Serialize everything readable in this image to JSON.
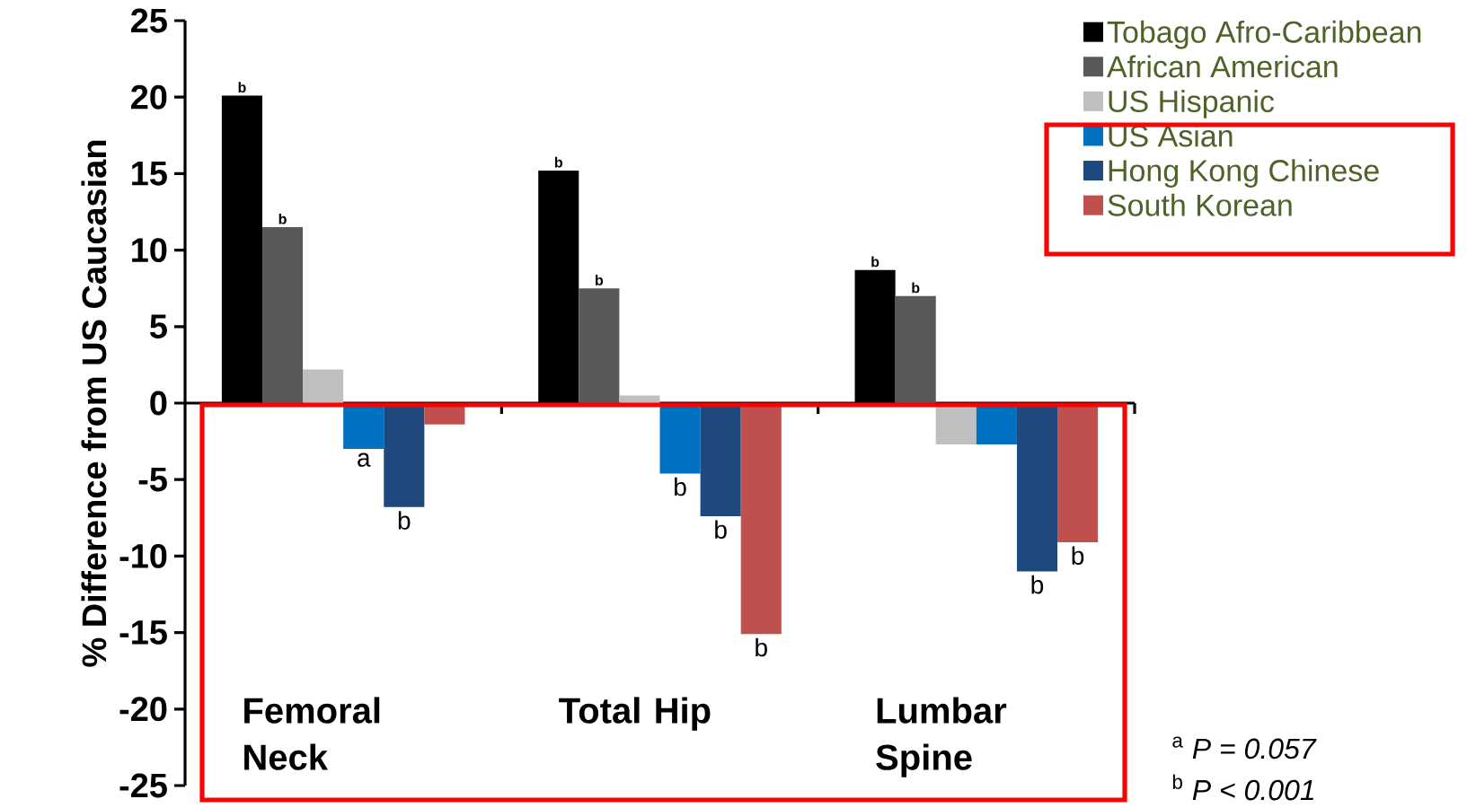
{
  "chart_data": {
    "type": "bar",
    "ylabel": "% Difference from US Caucasian",
    "categories": [
      "Femoral Neck",
      "Total Hip",
      "Lumbar Spine"
    ],
    "series": [
      {
        "name": "Tobago Afro-Caribbean",
        "color": "#000000",
        "values": [
          20.1,
          15.2,
          8.7
        ],
        "value_labels": [
          "b",
          "b",
          "b"
        ]
      },
      {
        "name": "African American",
        "color": "#595959",
        "values": [
          11.5,
          7.5,
          7.0
        ],
        "value_labels": [
          "b",
          "b",
          "b"
        ]
      },
      {
        "name": "US Hispanic",
        "color": "#bfbfbf",
        "values": [
          2.2,
          0.5,
          -2.7
        ]
      },
      {
        "name": "US Asian",
        "color": "#0070c0",
        "values": [
          -3.0,
          -4.6,
          -2.7
        ],
        "value_labels": [
          "a",
          "b",
          null
        ]
      },
      {
        "name": "Hong Kong Chinese",
        "color": "#1f497d",
        "values": [
          -6.8,
          -7.4,
          -11.0
        ],
        "value_labels": [
          "b",
          "b",
          "b"
        ]
      },
      {
        "name": "South Korean",
        "color": "#c0504d",
        "values": [
          -1.4,
          -15.1,
          -9.1
        ],
        "value_labels": [
          null,
          "b",
          "b"
        ]
      }
    ],
    "ylim": [
      -25,
      25
    ],
    "yticks": [
      -25,
      -20,
      -15,
      -10,
      -5,
      0,
      5,
      10,
      15,
      20,
      25
    ],
    "legend": "top right",
    "annotations": [
      "$^{a}$ *P = 0.057*",
      "$^{b}$ *P < 0.001*"
    ]
  }
}
